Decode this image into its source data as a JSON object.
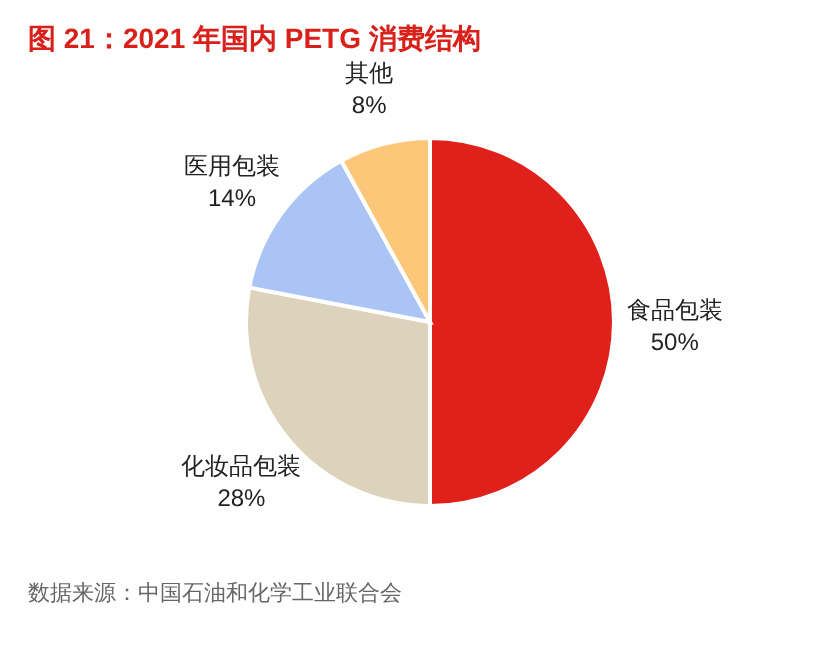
{
  "chart_data": {
    "type": "pie",
    "title": "图 21：2021 年国内 PETG 消费结构",
    "categories": [
      "食品包装",
      "化妆品包装",
      "医用包装",
      "其他"
    ],
    "values": [
      50,
      28,
      14,
      8
    ],
    "colors": [
      "#e0201b",
      "#ddd3bc",
      "#a9c4f5",
      "#fdc77a"
    ],
    "value_labels": [
      "50%",
      "28%",
      "14%",
      "8%"
    ],
    "annotations": [
      "数据来源：中国石油和化学工业联合会"
    ]
  }
}
